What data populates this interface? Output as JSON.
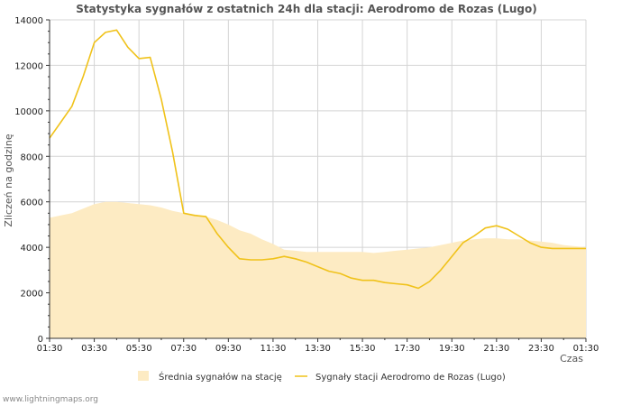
{
  "chart_data": {
    "type": "line",
    "title": "Statystyka sygnałów z ostatnich 24h dla stacji: Aerodromo de Rozas (Lugo)",
    "xlabel": "Czas",
    "ylabel": "Zliczeń na godzinę",
    "ylim": [
      0,
      14000
    ],
    "y_ticks": [
      0,
      2000,
      4000,
      6000,
      8000,
      10000,
      12000,
      14000
    ],
    "x_tick_labels": [
      "01:30",
      "03:30",
      "05:30",
      "07:30",
      "09:30",
      "11:30",
      "13:30",
      "15:30",
      "17:30",
      "19:30",
      "21:30",
      "23:30",
      "01:30"
    ],
    "x_hours": [
      0,
      0.5,
      1,
      1.5,
      2,
      2.5,
      3,
      3.5,
      4,
      4.5,
      5,
      5.5,
      6,
      6.5,
      7,
      7.5,
      8,
      8.5,
      9,
      9.5,
      10,
      10.5,
      11,
      11.5,
      12,
      12.5,
      13,
      13.5,
      14,
      14.5,
      15,
      15.5,
      16,
      16.5,
      17,
      17.5,
      18,
      18.5,
      19,
      19.5,
      20,
      20.5,
      21,
      21.5,
      22,
      22.5,
      23,
      23.5,
      24
    ],
    "legend_position": "bottom-center",
    "grid": true,
    "series": [
      {
        "name": "Średnia sygnałów na stację",
        "style": "area",
        "color": "#fdebc3",
        "values": [
          5300,
          5400,
          5500,
          5700,
          5900,
          6000,
          6000,
          5950,
          5900,
          5850,
          5750,
          5600,
          5500,
          5450,
          5350,
          5200,
          5000,
          4750,
          4600,
          4350,
          4150,
          3900,
          3850,
          3800,
          3800,
          3800,
          3800,
          3800,
          3800,
          3750,
          3800,
          3850,
          3900,
          3950,
          4000,
          4100,
          4200,
          4300,
          4350,
          4400,
          4400,
          4350,
          4350,
          4300,
          4250,
          4200,
          4100,
          4050,
          4000
        ]
      },
      {
        "name": "Sygnały stacji Aerodromo de Rozas (Lugo)",
        "style": "line",
        "color": "#f0c21a",
        "values": [
          8800,
          9500,
          10200,
          11500,
          13000,
          13450,
          13550,
          12800,
          12300,
          12350,
          10500,
          8200,
          5500,
          5400,
          5350,
          4600,
          4000,
          3500,
          3450,
          3450,
          3500,
          3600,
          3500,
          3350,
          3150,
          2950,
          2850,
          2650,
          2550,
          2550,
          2450,
          2400,
          2350,
          2200,
          2500,
          3000,
          3600,
          4200,
          4500,
          4850,
          4950,
          4800,
          4500,
          4200,
          4000,
          3950,
          3950,
          3950,
          3950
        ]
      }
    ]
  },
  "credit": "www.lightningmaps.org"
}
